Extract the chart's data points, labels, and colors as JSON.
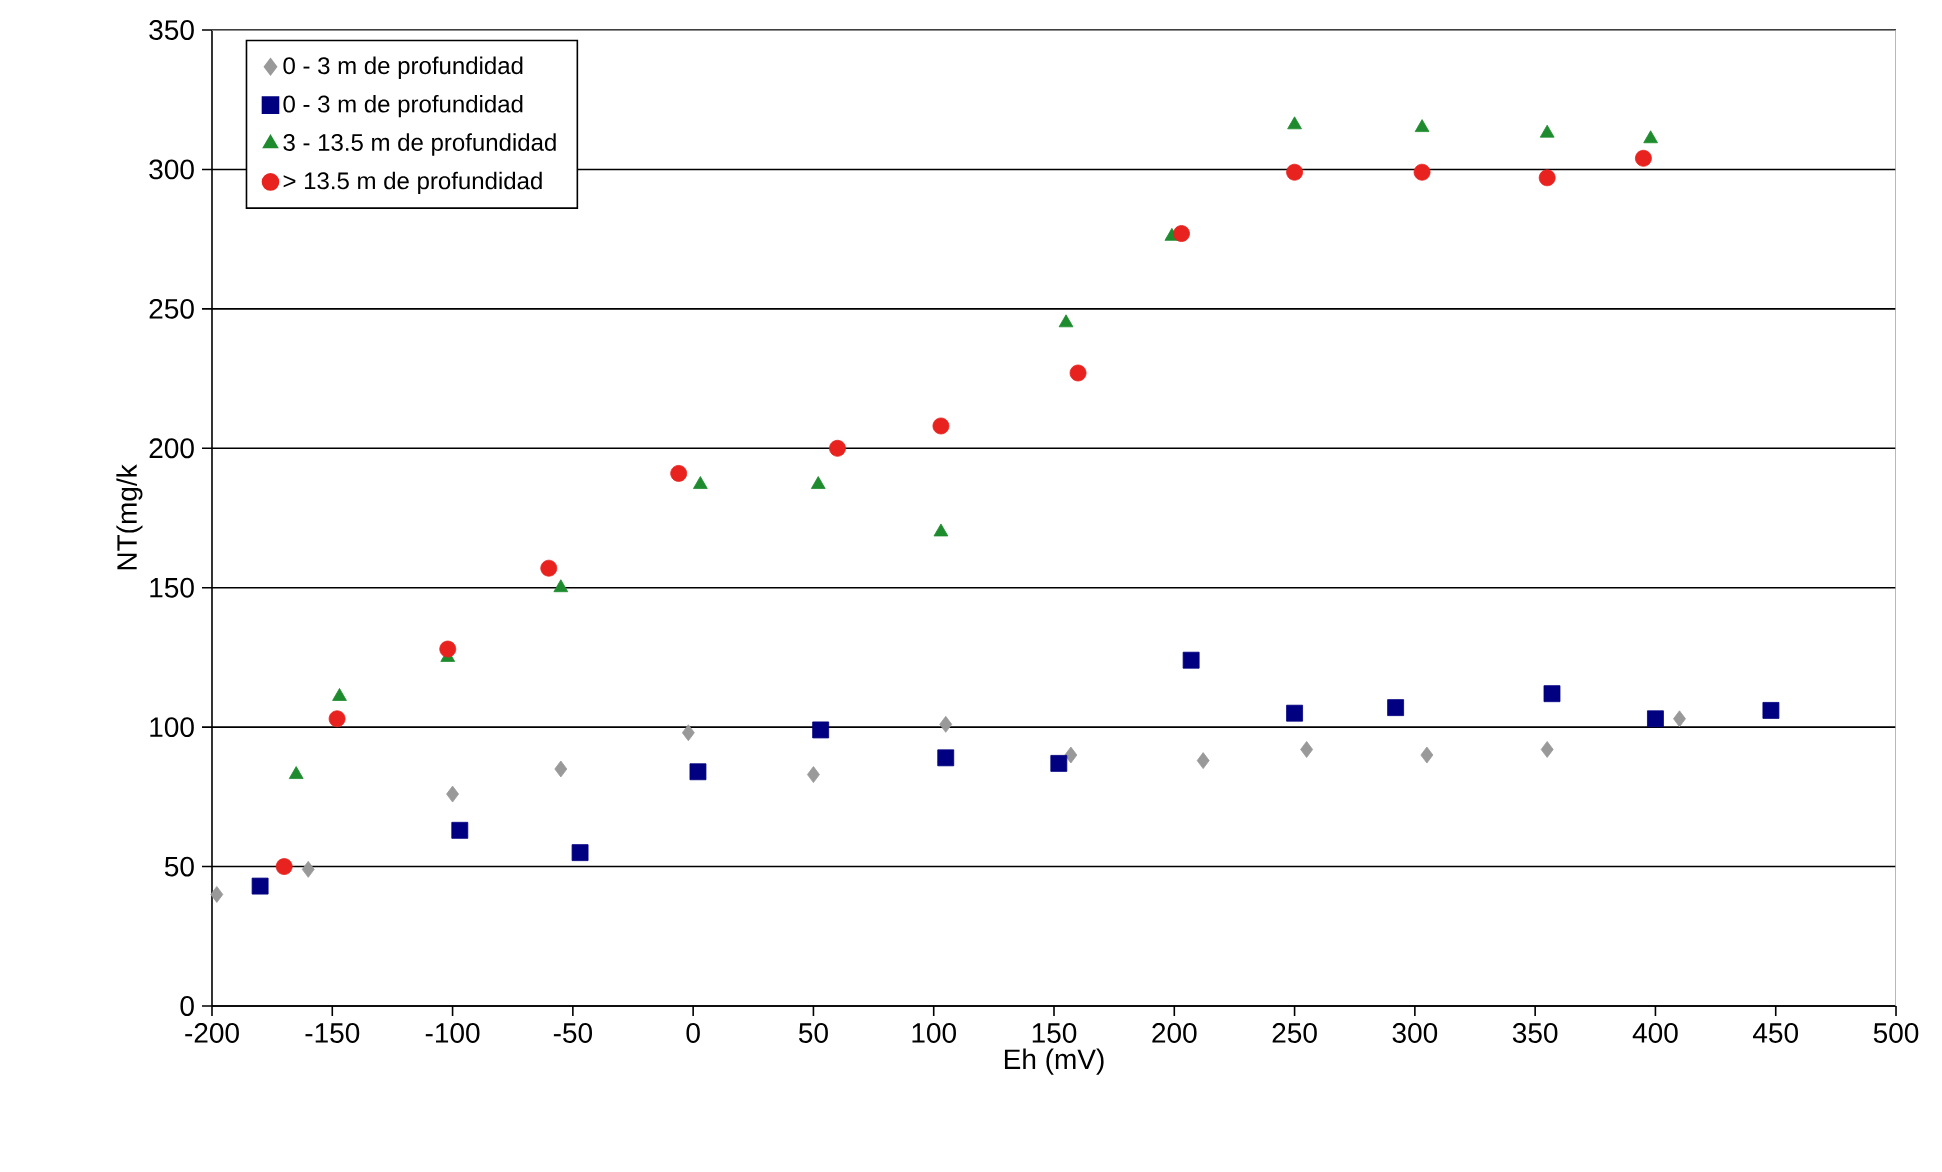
{
  "chart_data": {
    "type": "scatter",
    "xlabel": "Eh (mV)",
    "ylabel": "NT(mg/k",
    "xlim": [
      -200,
      500
    ],
    "xticks": [
      -200,
      -150,
      -100,
      -50,
      0,
      50,
      100,
      150,
      200,
      250,
      300,
      350,
      400,
      450,
      500
    ],
    "ylim": [
      0,
      350
    ],
    "yticks": [
      0,
      50,
      100,
      150,
      200,
      250,
      300,
      350
    ],
    "grid": "y",
    "legend": "top left",
    "series": [
      {
        "name": "0 - 3 m de profundidad",
        "color": "#999999",
        "marker": "diamond",
        "x": [
          -198,
          -160,
          -100,
          -55,
          -2,
          50,
          105,
          157,
          212,
          255,
          305,
          355,
          410
        ],
        "values": [
          40,
          49,
          76,
          85,
          98,
          83,
          101,
          90,
          88,
          92,
          90,
          92,
          103
        ]
      },
      {
        "name": "0 - 3 m de profundidad",
        "color": "#000080",
        "marker": "square",
        "x": [
          -180,
          -97,
          -47,
          2,
          53,
          105,
          152,
          207,
          250,
          292,
          357,
          400,
          448
        ],
        "values": [
          43,
          63,
          55,
          84,
          99,
          89,
          87,
          124,
          105,
          107,
          112,
          103,
          106
        ]
      },
      {
        "name": "3 -  13.5 m de profundidad",
        "color": "#1e8c2e",
        "marker": "triangle",
        "x": [
          -165,
          -147,
          -102,
          -55,
          3,
          52,
          103,
          155,
          199,
          250,
          303,
          355,
          398
        ],
        "values": [
          83,
          111,
          125,
          150,
          187,
          187,
          170,
          245,
          276,
          316,
          315,
          313,
          311
        ]
      },
      {
        "name": "> 13.5 m de profundidad",
        "color": "#e8221e",
        "marker": "circle",
        "x": [
          -170,
          -148,
          -102,
          -60,
          -6,
          60,
          103,
          160,
          203,
          250,
          303,
          355,
          395
        ],
        "values": [
          50,
          103,
          128,
          157,
          191,
          200,
          208,
          227,
          277,
          299,
          299,
          297,
          304
        ]
      }
    ]
  }
}
